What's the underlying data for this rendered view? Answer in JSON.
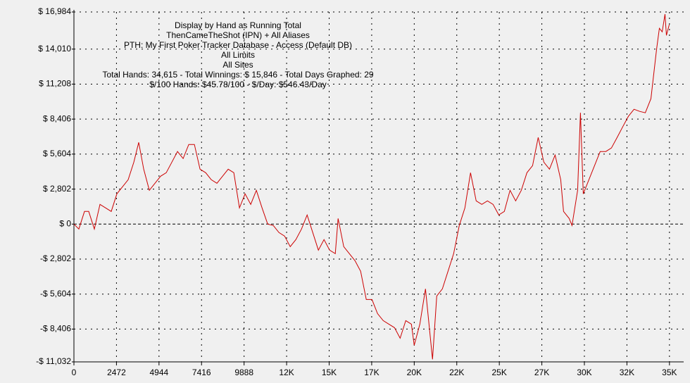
{
  "chart_data": {
    "type": "line",
    "title": "Display by Hand as Running Total",
    "annotations": [
      "ThenCameTheShot (IPN) + All Aliases",
      "PTH: My First Poker Tracker Database - Access (Default DB)",
      "All Limits",
      "All Sites",
      "Total Hands: 34,615 - Total Winnings: $ 15,846 - Total Days Graphed: 29",
      "$/100 Hands: $45.78/100 - $/Day: $546.43/Day"
    ],
    "grid": true,
    "zero_line": true,
    "xlim": [
      0,
      34615
    ],
    "ylim": [
      -11032,
      16984
    ],
    "xticks": [
      0,
      2472,
      4944,
      7416,
      9888,
      {
        "value": 12360,
        "label": "12K"
      },
      {
        "value": 14832,
        "label": "15K"
      },
      {
        "value": 17304,
        "label": "17K"
      },
      {
        "value": 19776,
        "label": "20K"
      },
      {
        "value": 22248,
        "label": "22K"
      },
      {
        "value": 24720,
        "label": "25K"
      },
      {
        "value": 27192,
        "label": "27K"
      },
      {
        "value": 29664,
        "label": "30K"
      },
      {
        "value": 32136,
        "label": "32K"
      },
      {
        "value": 34608,
        "label": "35K"
      }
    ],
    "yticks": [
      {
        "value": -11032,
        "label": "-$ 11,032"
      },
      {
        "value": -8406,
        "label": "-$ 8,406"
      },
      {
        "value": -5604,
        "label": "-$ 5,604"
      },
      {
        "value": -2802,
        "label": "-$ 2,802"
      },
      {
        "value": 0,
        "label": "$ 0"
      },
      {
        "value": 2802,
        "label": "$ 2,802"
      },
      {
        "value": 5604,
        "label": "$ 5,604"
      },
      {
        "value": 8406,
        "label": "$ 8,406"
      },
      {
        "value": 11208,
        "label": "$ 11,208"
      },
      {
        "value": 14010,
        "label": "$ 14,010"
      },
      {
        "value": 16984,
        "label": "$ 16,984"
      }
    ],
    "series": [
      {
        "color": "#cc0000",
        "x": [
          0,
          287,
          614,
          860,
          1187,
          1515,
          1842,
          2170,
          2497,
          2825,
          3152,
          3480,
          3766,
          4053,
          4381,
          4708,
          5036,
          5363,
          5691,
          6018,
          6346,
          6673,
          7001,
          7328,
          7656,
          7983,
          8311,
          8638,
          8966,
          9293,
          9621,
          9948,
          10276,
          10603,
          10931,
          11259,
          11586,
          11914,
          12241,
          12569,
          12896,
          13224,
          13551,
          13879,
          14206,
          14534,
          14861,
          15189,
          15353,
          15680,
          16008,
          16335,
          16663,
          16990,
          17318,
          17645,
          17973,
          18300,
          18628,
          18955,
          19283,
          19610,
          19774,
          20102,
          20429,
          20593,
          20838,
          21084,
          21412,
          21739,
          22067,
          22394,
          22722,
          23049,
          23377,
          23704,
          24032,
          24359,
          24687,
          25014,
          25342,
          25669,
          25997,
          26324,
          26652,
          26979,
          27307,
          27634,
          27962,
          28289,
          28453,
          28781,
          28945,
          29272,
          29436,
          29600,
          29927,
          30255,
          30582,
          30910,
          31237,
          31565,
          31892,
          32220,
          32547,
          32875,
          33202,
          33530,
          33857,
          34021,
          34185,
          34349,
          34431,
          34595
        ],
        "values": [
          0,
          -395,
          1015,
          1015,
          -395,
          1579,
          1297,
          1015,
          2425,
          2989,
          3553,
          4963,
          6542,
          4399,
          2707,
          3271,
          3835,
          4117,
          4963,
          5809,
          5245,
          6373,
          6373,
          4399,
          4117,
          3553,
          3271,
          3835,
          4399,
          4117,
          1297,
          2425,
          1579,
          2707,
          1297,
          0,
          -113,
          -677,
          -959,
          -1805,
          -1241,
          -395,
          733,
          -677,
          -2087,
          -1241,
          -2087,
          -2369,
          451,
          -1805,
          -2369,
          -2933,
          -3779,
          -6035,
          -6035,
          -7163,
          -7727,
          -8009,
          -8291,
          -9137,
          -7727,
          -8009,
          -9701,
          -8009,
          -5189,
          -7445,
          -10829,
          -5753,
          -5189,
          -3779,
          -2369,
          -113,
          1297,
          4117,
          1861,
          1579,
          1861,
          1579,
          733,
          1015,
          2707,
          1861,
          2707,
          4117,
          4681,
          6937,
          4963,
          4399,
          5527,
          3553,
          1015,
          451,
          -113,
          2707,
          8911,
          2425,
          3553,
          4681,
          5809,
          5809,
          6091,
          6937,
          7783,
          8629,
          9193,
          9024,
          8911,
          10039,
          13987,
          15679,
          15397,
          16807,
          15115,
          15961
        ]
      }
    ]
  }
}
